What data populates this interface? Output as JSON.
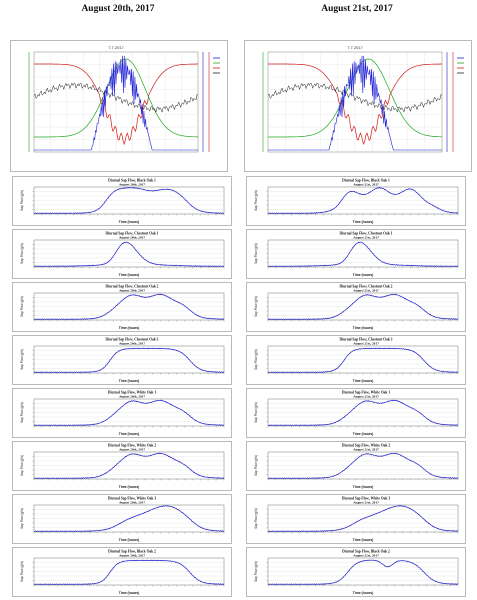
{
  "columns": [
    {
      "title": "August 20th, 2017"
    },
    {
      "title": "August 21st, 2017"
    }
  ],
  "weather_panels": [
    {
      "date_label": "7.7.2017"
    },
    {
      "date_label": "7.7.2017"
    }
  ],
  "chart_data": [
    {
      "type": "line",
      "title": "Diurnal Sap Flow, Black Oak 1",
      "subtitle": "August 20th, 2017",
      "xlabel": "Time (hours)",
      "ylabel": "Sap Flow (g/h)",
      "shape": "plateau_dip"
    },
    {
      "type": "line",
      "title": "Diurnal Sap Flow, Chestnut Oak 1",
      "subtitle": "August 20th, 2017",
      "xlabel": "Time (hours)",
      "ylabel": "Sap Flow (g/h)",
      "shape": "early_peak"
    },
    {
      "type": "line",
      "title": "Diurnal Sap Flow, Chestnut Oak 2",
      "subtitle": "August 20th, 2017",
      "xlabel": "Time (hours)",
      "ylabel": "Sap Flow (g/h)",
      "shape": "plateau"
    },
    {
      "type": "line",
      "title": "Diurnal Sap Flow, Chestnut Oak 3",
      "subtitle": "August 20th, 2017",
      "xlabel": "Time (hours)",
      "ylabel": "Sap Flow (g/h)",
      "shape": "flat_plateau"
    },
    {
      "type": "line",
      "title": "Diurnal Sap Flow, White Oak 1",
      "subtitle": "August 20th, 2017",
      "xlabel": "Time (hours)",
      "ylabel": "Sap Flow (g/h)",
      "shape": "plateau"
    },
    {
      "type": "line",
      "title": "Diurnal Sap Flow, White Oak 2",
      "subtitle": "August 20th, 2017",
      "xlabel": "Time (hours)",
      "ylabel": "Sap Flow (g/h)",
      "shape": "plateau"
    },
    {
      "type": "line",
      "title": "Diurnal Sap Flow, White Oak 3",
      "subtitle": "August 20th, 2017",
      "xlabel": "Time (hours)",
      "ylabel": "Sap Flow (g/h)",
      "shape": "late_peak"
    },
    {
      "type": "line",
      "title": "Diurnal Sap Flow, Black Oak 2",
      "subtitle": "August 20th, 2017",
      "xlabel": "Time (hours)",
      "ylabel": "Sap Flow (g/h)",
      "shape": "flat_plateau"
    },
    {
      "type": "line",
      "title": "Diurnal Sap Flow, Black Oak 1",
      "subtitle": "August 21st, 2017",
      "xlabel": "Time (hours)",
      "ylabel": "Sap Flow (g/h)",
      "shape": "wavy"
    },
    {
      "type": "line",
      "title": "Diurnal Sap Flow, Chestnut Oak 1",
      "subtitle": "August 21st, 2017",
      "xlabel": "Time (hours)",
      "ylabel": "Sap Flow (g/h)",
      "shape": "early_peak"
    },
    {
      "type": "line",
      "title": "Diurnal Sap Flow, Chestnut Oak 2",
      "subtitle": "August 21st, 2017",
      "xlabel": "Time (hours)",
      "ylabel": "Sap Flow (g/h)",
      "shape": "plateau"
    },
    {
      "type": "line",
      "title": "Diurnal Sap Flow, Chestnut Oak 3",
      "subtitle": "August 21st, 2017",
      "xlabel": "Time (hours)",
      "ylabel": "Sap Flow (g/h)",
      "shape": "flat_plateau"
    },
    {
      "type": "line",
      "title": "Diurnal Sap Flow, White Oak 1",
      "subtitle": "August 21st, 2017",
      "xlabel": "Time (hours)",
      "ylabel": "Sap Flow (g/h)",
      "shape": "plateau"
    },
    {
      "type": "line",
      "title": "Diurnal Sap Flow, White Oak 2",
      "subtitle": "August 21st, 2017",
      "xlabel": "Time (hours)",
      "ylabel": "Sap Flow (g/h)",
      "shape": "plateau"
    },
    {
      "type": "line",
      "title": "Diurnal Sap Flow, White Oak 3",
      "subtitle": "August 21st, 2017",
      "xlabel": "Time (hours)",
      "ylabel": "Sap Flow (g/h)",
      "shape": "late_peak"
    },
    {
      "type": "line",
      "title": "Diurnal Sap Flow, Black Oak 2",
      "subtitle": "August 21st, 2017",
      "xlabel": "Time (hours)",
      "ylabel": "Sap Flow (g/h)",
      "shape": "dip_mid"
    }
  ],
  "colors": {
    "sap": "#1d1dc8",
    "weather_green": "#1fa81f",
    "weather_red": "#d41c1c",
    "weather_blue": "#1b1bd6",
    "weather_black": "#222222",
    "frame": "#b9b9b9"
  }
}
